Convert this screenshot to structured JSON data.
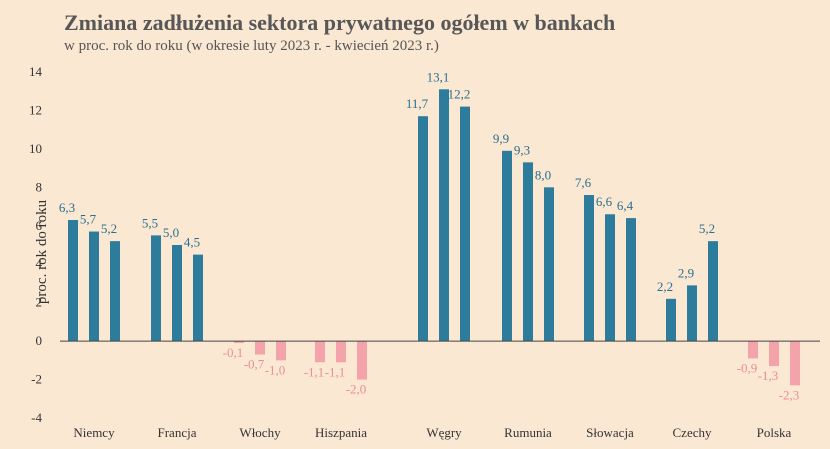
{
  "title": "Zmiana zadłużenia sektora prywatnego ogółem w bankach",
  "subtitle": "w proc. rok do roku (w okresie luty 2023 r. - kwiecień 2023 r.)",
  "colors": {
    "background": "#fbe8d3",
    "positive": "#2e7c9c",
    "negative": "#f4a3ab",
    "positive_label": "#2a6f8e",
    "negative_label": "#e88f98",
    "axis": "#444444"
  },
  "chart_data": {
    "type": "bar",
    "ylabel": "proc. rok do roku",
    "ylim": [
      -4,
      14
    ],
    "yticks": [
      14,
      12,
      10,
      8,
      6,
      4,
      2,
      0,
      -2,
      -4
    ],
    "grid": false,
    "categories": [
      "Niemcy",
      "Francja",
      "Włochy",
      "Hiszpania",
      "Węgry",
      "Rumunia",
      "Słowacja",
      "Czechy",
      "Polska"
    ],
    "values": [
      [
        6.3,
        5.7,
        5.2
      ],
      [
        5.5,
        5.0,
        4.5
      ],
      [
        -0.1,
        -0.7,
        -1.0
      ],
      [
        -1.1,
        -1.1,
        -2.0
      ],
      [
        11.7,
        13.1,
        12.2
      ],
      [
        9.9,
        9.3,
        8.0
      ],
      [
        7.6,
        6.6,
        6.4
      ],
      [
        2.2,
        2.9,
        5.2
      ],
      [
        -0.9,
        -1.3,
        -2.3
      ]
    ],
    "value_labels": [
      [
        "6,3",
        "5,7",
        "5,2"
      ],
      [
        "5,5",
        "5,0",
        "4,5"
      ],
      [
        "-0,1",
        "-0,7",
        "-1,0"
      ],
      [
        "-1,1",
        "-1,1",
        "-2,0"
      ],
      [
        "11,7",
        "13,1",
        "12,2"
      ],
      [
        "9,9",
        "9,3",
        "8,0"
      ],
      [
        "7,6",
        "6,6",
        "6,4"
      ],
      [
        "2,2",
        "2,9",
        "5,2"
      ],
      [
        "-0,9",
        "-1,3",
        "-2,3"
      ]
    ]
  }
}
